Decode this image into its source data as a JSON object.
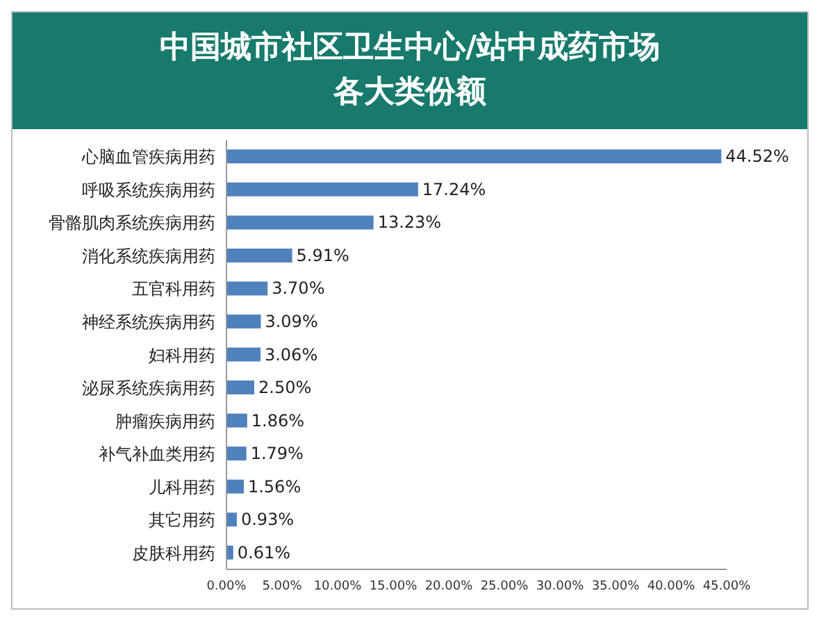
{
  "chart_data": {
    "type": "bar",
    "orientation": "horizontal",
    "title": "中国城市社区卫生中心/站中成药市场各大类份额",
    "categories": [
      "心脑血管疾病用药",
      "呼吸系统疾病用药",
      "骨骼肌肉系统疾病用药",
      "消化系统疾病用药",
      "五官科用药",
      "神经系统疾病用药",
      "妇科用药",
      "泌尿系统疾病用药",
      "肿瘤疾病用药",
      "补气补血类用药",
      "儿科用药",
      "其它用药",
      "皮肤科用药"
    ],
    "values": [
      44.52,
      17.24,
      13.23,
      5.91,
      3.7,
      3.09,
      3.06,
      2.5,
      1.86,
      1.79,
      1.56,
      0.93,
      0.61
    ],
    "value_labels": [
      "44.52%",
      "17.24%",
      "13.23%",
      "5.91%",
      "3.70%",
      "3.09%",
      "3.06%",
      "2.50%",
      "1.86%",
      "1.79%",
      "1.56%",
      "0.93%",
      "0.61%"
    ],
    "color": "#4f81bd",
    "xlim": [
      0,
      45
    ],
    "xticks": [
      {
        "value": 0,
        "label": "0.00%"
      },
      {
        "value": 5,
        "label": "5.00%"
      },
      {
        "value": 10,
        "label": "10.00%"
      },
      {
        "value": 15,
        "label": "15.00%"
      },
      {
        "value": 20,
        "label": "20.00%"
      },
      {
        "value": 25,
        "label": "25.00%"
      },
      {
        "value": 30,
        "label": "30.00%"
      },
      {
        "value": 35,
        "label": "35.00%"
      },
      {
        "value": 40,
        "label": "40.00%"
      },
      {
        "value": 45,
        "label": "45.00%"
      }
    ],
    "grid": false,
    "legend": false
  }
}
